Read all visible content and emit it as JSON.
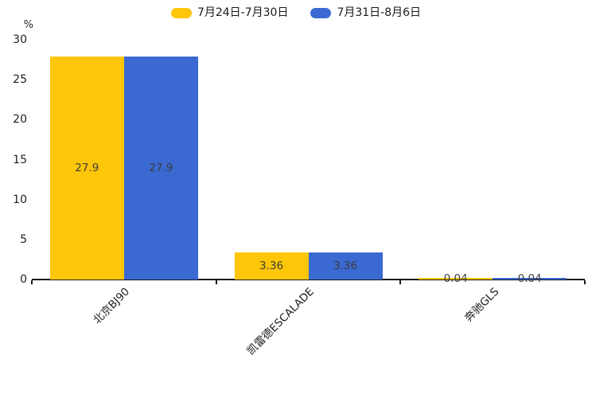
{
  "chart_data": {
    "type": "bar",
    "title": "",
    "categories": [
      "北京BJ90",
      "凯雷德ESCALADE",
      "奔驰GLS"
    ],
    "series": [
      {
        "name": "7月24日-7月30日",
        "color": "#FDC609",
        "values": [
          27.9,
          3.36,
          0.04
        ]
      },
      {
        "name": "7月31日-8月6日",
        "color": "#3A69D2",
        "values": [
          27.9,
          3.36,
          0.04
        ]
      }
    ],
    "value_labels": [
      [
        "27.9",
        "3.36",
        "0.04"
      ],
      [
        "27.9",
        "3.36",
        "0.04"
      ]
    ],
    "ylabel": "%",
    "ylim": [
      0,
      30
    ],
    "yticks": [
      "0",
      "5",
      "10",
      "15",
      "20",
      "25",
      "30"
    ],
    "legend_position": "top-center",
    "grid": false,
    "x_tick_rotation_deg": 45,
    "colors": {
      "bar_value_label": "#3C3C3C",
      "axis": "#1A1A1A",
      "tick_label": "#1F1F1F",
      "background": "#FFFFFF"
    }
  }
}
